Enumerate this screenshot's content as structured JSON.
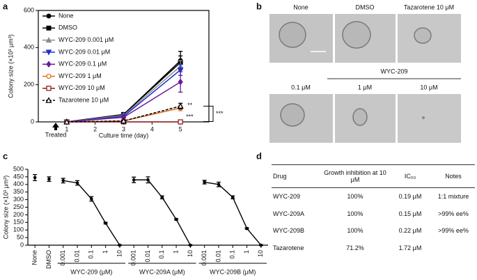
{
  "panel_labels": [
    "a",
    "b",
    "c",
    "d"
  ],
  "chart_data": [
    {
      "type": "line",
      "xlabel": "Culture time (day)",
      "ylabel": "Colony size (×10³ μm³)",
      "x": [
        1,
        3,
        5
      ],
      "xlim": [
        0,
        6
      ],
      "xticks": [
        1,
        2,
        3,
        4,
        5
      ],
      "ylim": [
        0,
        600
      ],
      "yticks": [
        0,
        200,
        400,
        600
      ],
      "legend": "upper left",
      "series": [
        {
          "name": "None",
          "color": "#000000",
          "marker": "circle",
          "values": [
            0,
            40,
            330
          ],
          "errors": [
            5,
            8,
            50
          ]
        },
        {
          "name": "DMSO",
          "color": "#000000",
          "marker": "square",
          "values": [
            0,
            40,
            320
          ],
          "errors": [
            5,
            8,
            35
          ]
        },
        {
          "name": "WYC-209 0.001 μM",
          "color": "#8c8c8c",
          "marker": "triangle",
          "values": [
            0,
            35,
            300
          ],
          "errors": [
            5,
            8,
            30
          ]
        },
        {
          "name": "WYC-209 0.01 μM",
          "color": "#1f2fd0",
          "marker": "triangle-down",
          "values": [
            0,
            30,
            280
          ],
          "errors": [
            5,
            8,
            30
          ]
        },
        {
          "name": "WYC-209 0.1 μM",
          "color": "#6a1b9a",
          "marker": "diamond",
          "values": [
            0,
            25,
            215
          ],
          "errors": [
            5,
            8,
            55
          ]
        },
        {
          "name": "WYC-209 1 μM",
          "color": "#e07020",
          "marker": "open-circle",
          "values": [
            0,
            5,
            75
          ],
          "errors": [
            3,
            4,
            15
          ]
        },
        {
          "name": "WYC-209 10 μM",
          "color": "#8b2020",
          "marker": "open-square",
          "values": [
            0,
            0,
            0
          ],
          "errors": [
            2,
            2,
            3
          ]
        },
        {
          "name": "Tazarotene 10 μM",
          "color": "#000000",
          "marker": "open-triangle",
          "dashed": true,
          "values": [
            0,
            5,
            85
          ],
          "errors": [
            3,
            4,
            15
          ]
        }
      ],
      "annotations": [
        "Treated",
        "**",
        "***",
        "***"
      ]
    },
    {
      "type": "line",
      "ylabel": "Colony size (×10³ μm³)",
      "categories": [
        "None",
        "DMSO",
        "0.001",
        "0.01",
        "0.1",
        "1",
        "10",
        "0.001",
        "0.01",
        "0.1",
        "1",
        "10",
        "0.001",
        "0.01",
        "0.1",
        "1",
        "10"
      ],
      "ylim": [
        0,
        500
      ],
      "yticks": [
        0,
        50,
        100,
        150,
        200,
        250,
        300,
        350,
        400,
        450,
        500
      ],
      "series": [
        {
          "color": "#000000",
          "line": false,
          "values": [
            445,
            435,
            null,
            null,
            null,
            null,
            null,
            null,
            null,
            null,
            null,
            null,
            null,
            null,
            null,
            null,
            null
          ],
          "errors": [
            20,
            15,
            null,
            null,
            null,
            null,
            null,
            null,
            null,
            null,
            null,
            null,
            null,
            null,
            null,
            null,
            null
          ]
        },
        {
          "name": "WYC-209 (μM)",
          "color": "#000000",
          "values": [
            null,
            null,
            425,
            410,
            305,
            145,
            0,
            null,
            null,
            null,
            null,
            null,
            null,
            null,
            null,
            null,
            null
          ],
          "errors": [
            null,
            null,
            15,
            15,
            15,
            5,
            2,
            null,
            null,
            null,
            null,
            null,
            null,
            null,
            null,
            null,
            null
          ]
        },
        {
          "name": "WYC-209A (μM)",
          "color": "#000000",
          "values": [
            null,
            null,
            null,
            null,
            null,
            null,
            null,
            430,
            430,
            315,
            170,
            0,
            null,
            null,
            null,
            null,
            null
          ],
          "errors": [
            null,
            null,
            null,
            null,
            null,
            null,
            null,
            18,
            20,
            10,
            5,
            2,
            null,
            null,
            null,
            null,
            null
          ]
        },
        {
          "name": "WYC-209B (μM)",
          "color": "#000000",
          "values": [
            null,
            null,
            null,
            null,
            null,
            null,
            null,
            null,
            null,
            null,
            null,
            null,
            415,
            400,
            315,
            110,
            0
          ],
          "errors": [
            null,
            null,
            null,
            null,
            null,
            null,
            null,
            null,
            null,
            null,
            null,
            null,
            12,
            15,
            10,
            5,
            2
          ]
        }
      ]
    }
  ],
  "images": {
    "top_labels": [
      "None",
      "DMSO",
      "Tazarotene 10 μM"
    ],
    "group_label": "WYC-209",
    "bottom_labels": [
      "0.1 μM",
      "1 μM",
      "10 μM"
    ]
  },
  "table": {
    "header": [
      "Drug",
      "Growth inhibition at 10 μM",
      "IC₅₀",
      "Notes"
    ],
    "rows": [
      [
        "WYC-209",
        "100%",
        "0.19 μM",
        "1:1 mixture"
      ],
      [
        "WYC-209A",
        "100%",
        "0.15 μM",
        ">99% ee%"
      ],
      [
        "WYC-209B",
        "100%",
        "0.22 μM",
        ">99% ee%"
      ],
      [
        "Tazarotene",
        "71.2%",
        "1.72 μM",
        ""
      ]
    ]
  }
}
